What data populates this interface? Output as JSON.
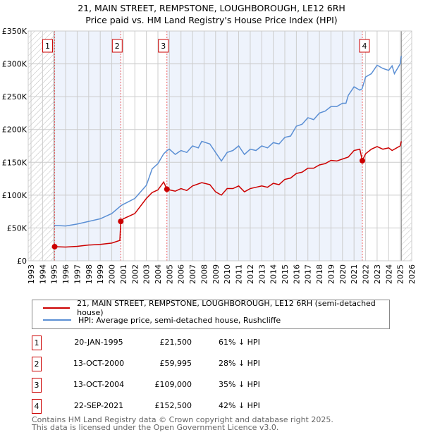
{
  "chart_data": {
    "type": "line",
    "title": "21, MAIN STREET, REMPSTONE, LOUGHBOROUGH, LE12 6RH",
    "subtitle": "Price paid vs. HM Land Registry's House Price Index (HPI)",
    "xlim": [
      1993,
      2026
    ],
    "ylim": [
      0,
      350000
    ],
    "y_ticks": [
      0,
      50000,
      100000,
      150000,
      200000,
      250000,
      300000,
      350000
    ],
    "y_tick_labels": [
      "£0",
      "£50K",
      "£100K",
      "£150K",
      "£200K",
      "£250K",
      "£300K",
      "£350K"
    ],
    "x_ticks": [
      1993,
      1994,
      1995,
      1996,
      1997,
      1998,
      1999,
      2000,
      2001,
      2002,
      2003,
      2004,
      2005,
      2006,
      2007,
      2008,
      2009,
      2010,
      2011,
      2012,
      2013,
      2014,
      2015,
      2016,
      2017,
      2018,
      2019,
      2020,
      2021,
      2022,
      2023,
      2024,
      2025,
      2026
    ],
    "grid": true,
    "series": [
      {
        "name": "21, MAIN STREET, REMPSTONE, LOUGHBOROUGH, LE12 6RH (semi-detached house)",
        "color": "#cc0000",
        "points": [
          [
            1995.05,
            21500
          ],
          [
            1996,
            21000
          ],
          [
            1997,
            22000
          ],
          [
            1998,
            24000
          ],
          [
            1999,
            25000
          ],
          [
            2000,
            27000
          ],
          [
            2000.7,
            31000
          ],
          [
            2000.78,
            59995
          ],
          [
            2001,
            64000
          ],
          [
            2002,
            72000
          ],
          [
            2003,
            95000
          ],
          [
            2003.5,
            104000
          ],
          [
            2004,
            108000
          ],
          [
            2004.5,
            120000
          ],
          [
            2004.78,
            109000
          ],
          [
            2005,
            108000
          ],
          [
            2005.5,
            106000
          ],
          [
            2006,
            110000
          ],
          [
            2006.5,
            107000
          ],
          [
            2007,
            114000
          ],
          [
            2007.8,
            119000
          ],
          [
            2008.5,
            116000
          ],
          [
            2009,
            105000
          ],
          [
            2009.5,
            100000
          ],
          [
            2010,
            110000
          ],
          [
            2010.5,
            110000
          ],
          [
            2011,
            114000
          ],
          [
            2011.5,
            105000
          ],
          [
            2012,
            110000
          ],
          [
            2012.5,
            112000
          ],
          [
            2013,
            114000
          ],
          [
            2013.5,
            112000
          ],
          [
            2014,
            118000
          ],
          [
            2014.5,
            116000
          ],
          [
            2015,
            124000
          ],
          [
            2015.5,
            126000
          ],
          [
            2016,
            133000
          ],
          [
            2016.5,
            135000
          ],
          [
            2017,
            141000
          ],
          [
            2017.5,
            141000
          ],
          [
            2018,
            146000
          ],
          [
            2018.5,
            148000
          ],
          [
            2019,
            153000
          ],
          [
            2019.5,
            152000
          ],
          [
            2020,
            155000
          ],
          [
            2020.5,
            158000
          ],
          [
            2021,
            168000
          ],
          [
            2021.5,
            170000
          ],
          [
            2021.72,
            152500
          ],
          [
            2022,
            163000
          ],
          [
            2022.5,
            170000
          ],
          [
            2023,
            174000
          ],
          [
            2023.5,
            170000
          ],
          [
            2024,
            172000
          ],
          [
            2024.3,
            168000
          ],
          [
            2025,
            175000
          ],
          [
            2025.1,
            182000
          ]
        ]
      },
      {
        "name": "HPI: Average price, semi-detached house, Rushcliffe",
        "color": "#5b8fd4",
        "points": [
          [
            1995,
            54000
          ],
          [
            1996,
            53000
          ],
          [
            1997,
            56000
          ],
          [
            1998,
            60000
          ],
          [
            1999,
            64000
          ],
          [
            2000,
            72000
          ],
          [
            2000.8,
            84000
          ],
          [
            2001,
            86000
          ],
          [
            2002,
            95000
          ],
          [
            2003,
            115000
          ],
          [
            2003.5,
            140000
          ],
          [
            2004,
            148000
          ],
          [
            2004.5,
            163000
          ],
          [
            2004.8,
            168000
          ],
          [
            2005,
            170000
          ],
          [
            2005.5,
            162000
          ],
          [
            2006,
            168000
          ],
          [
            2006.5,
            165000
          ],
          [
            2007,
            175000
          ],
          [
            2007.5,
            172000
          ],
          [
            2007.8,
            182000
          ],
          [
            2008.5,
            178000
          ],
          [
            2009,
            165000
          ],
          [
            2009.5,
            152000
          ],
          [
            2010,
            165000
          ],
          [
            2010.5,
            168000
          ],
          [
            2011,
            175000
          ],
          [
            2011.5,
            162000
          ],
          [
            2012,
            170000
          ],
          [
            2012.5,
            168000
          ],
          [
            2013,
            175000
          ],
          [
            2013.5,
            172000
          ],
          [
            2014,
            180000
          ],
          [
            2014.5,
            178000
          ],
          [
            2015,
            188000
          ],
          [
            2015.5,
            190000
          ],
          [
            2016,
            205000
          ],
          [
            2016.5,
            208000
          ],
          [
            2017,
            218000
          ],
          [
            2017.5,
            215000
          ],
          [
            2018,
            225000
          ],
          [
            2018.5,
            228000
          ],
          [
            2019,
            235000
          ],
          [
            2019.5,
            235000
          ],
          [
            2020,
            240000
          ],
          [
            2020.3,
            240000
          ],
          [
            2020.5,
            252000
          ],
          [
            2021,
            265000
          ],
          [
            2021.5,
            260000
          ],
          [
            2021.7,
            262000
          ],
          [
            2022,
            280000
          ],
          [
            2022.5,
            285000
          ],
          [
            2023,
            298000
          ],
          [
            2023.5,
            293000
          ],
          [
            2024,
            290000
          ],
          [
            2024.3,
            297000
          ],
          [
            2024.5,
            285000
          ],
          [
            2025,
            300000
          ],
          [
            2025.1,
            312000
          ]
        ]
      }
    ],
    "sales": [
      {
        "n": "1",
        "x": 1995.05,
        "value": 21500,
        "date": "20-JAN-1995",
        "price": "£21,500",
        "hpi": "61% ↓ HPI"
      },
      {
        "n": "2",
        "x": 2000.78,
        "value": 59995,
        "date": "13-OCT-2000",
        "price": "£59,995",
        "hpi": "28% ↓ HPI"
      },
      {
        "n": "3",
        "x": 2004.78,
        "value": 109000,
        "date": "13-OCT-2004",
        "price": "£109,000",
        "hpi": "35% ↓ HPI"
      },
      {
        "n": "4",
        "x": 2021.72,
        "value": 152500,
        "date": "22-SEP-2021",
        "price": "£152,500",
        "hpi": "42% ↓ HPI"
      }
    ],
    "data_end": 2025.1,
    "legend_position": "below"
  },
  "footer": {
    "line1": "Contains HM Land Registry data © Crown copyright and database right 2025.",
    "line2": "This data is licensed under the Open Government Licence v3.0."
  }
}
